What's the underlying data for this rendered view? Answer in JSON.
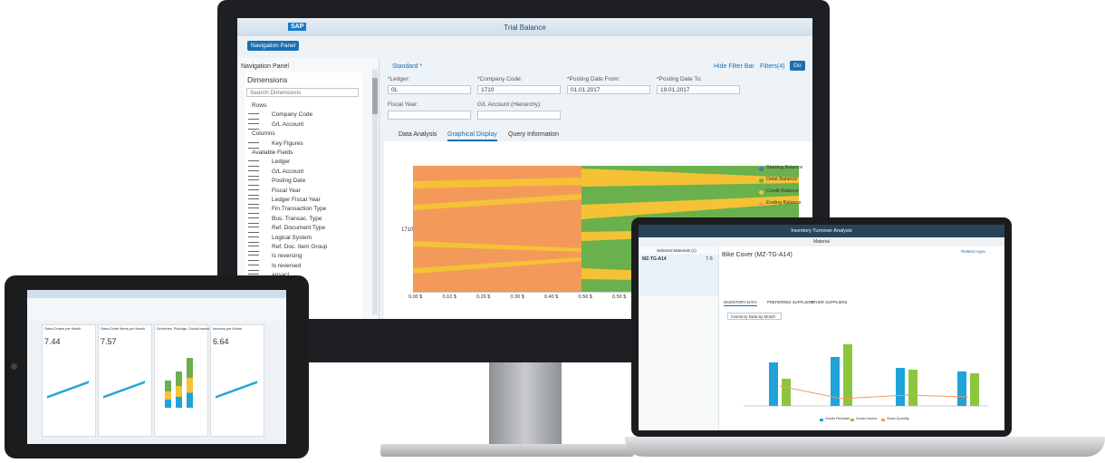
{
  "monitor": {
    "app_title": "Trial Balance",
    "logo": "SAP",
    "nav_button": "Navigation Panel",
    "nav": {
      "title": "Navigation Panel",
      "heading": "Dimensions",
      "search": "Search Dimensions",
      "items": [
        "Rows",
        "Company Code",
        "G/L Account",
        "Columns",
        "Key Figures",
        "Available Fields",
        "Ledger",
        "G/L Account",
        "Posting Date",
        "Fiscal Year",
        "Ledger Fiscal Year",
        "Fin.Transaction Type",
        "Bus. Transac. Type",
        "Ref. Document Type",
        "Logical System",
        "Ref. Doc. Item Group",
        "Is reversing",
        "Is reversed",
        "ansact"
      ]
    },
    "filter": {
      "variant": "Standard *",
      "hide": "Hide Filter Bar",
      "filters": "Filters(4)",
      "go": "Go",
      "fields": [
        {
          "label": "*Ledger:",
          "value": "0L"
        },
        {
          "label": "*Company Code:",
          "value": "1710"
        },
        {
          "label": "*Posting Date From:",
          "value": "01.01.2017"
        },
        {
          "label": "*Posting Date To:",
          "value": "19.01.2017"
        },
        {
          "label": "Fiscal Year:",
          "value": ""
        },
        {
          "label": "G/L Account (Hierarchy):",
          "value": ""
        }
      ]
    },
    "tabs": [
      "Data Analysis",
      "Graphical Display",
      "Query Information"
    ],
    "chart": {
      "category": "1710",
      "x_ticks": [
        "0.00 $",
        "0.10 $",
        "0.20 $",
        "0.30 $",
        "0.40 $",
        "0.50 $",
        "0.50 $"
      ],
      "legend": [
        {
          "name": "Starting Balance",
          "color": "#3f7fbf"
        },
        {
          "name": "Debit Balance",
          "color": "#6ab04c"
        },
        {
          "name": "Credit Balance",
          "color": "#f5c236"
        },
        {
          "name": "Ending Balance",
          "color": "#f39a5a"
        }
      ]
    }
  },
  "tablet": {
    "cards": [
      {
        "title": "Sales Orders per Month",
        "kpi": "7.44"
      },
      {
        "title": "Sales Order Items per Month",
        "kpi": "7.57"
      },
      {
        "title": "Deliveries, Pickings, Goods Issues",
        "kpi": ""
      },
      {
        "title": "Invoices per Month",
        "kpi": "6.64"
      }
    ]
  },
  "laptop": {
    "app_title": "Inventory Turnover Analysis",
    "subtitle": "Material",
    "list_title": "Selected Materials (1)",
    "item": "MZ-TG-A14",
    "item_value": "7.6",
    "object_title": "Bike Cover (MZ-TG-A14)",
    "related": "Related Apps",
    "tabs": [
      "INVENTORY DATA",
      "PREFERRED SUPPLIERS",
      "OTHER SUPPLIERS"
    ],
    "chart_select": "Inventory Data by Month",
    "legend": [
      {
        "name": "Goods Receipts",
        "color": "#1fa3d9"
      },
      {
        "name": "Goods Issues",
        "color": "#8cc63f"
      },
      {
        "name": "Stock Quantity",
        "color": "#f39a5a"
      }
    ]
  }
}
